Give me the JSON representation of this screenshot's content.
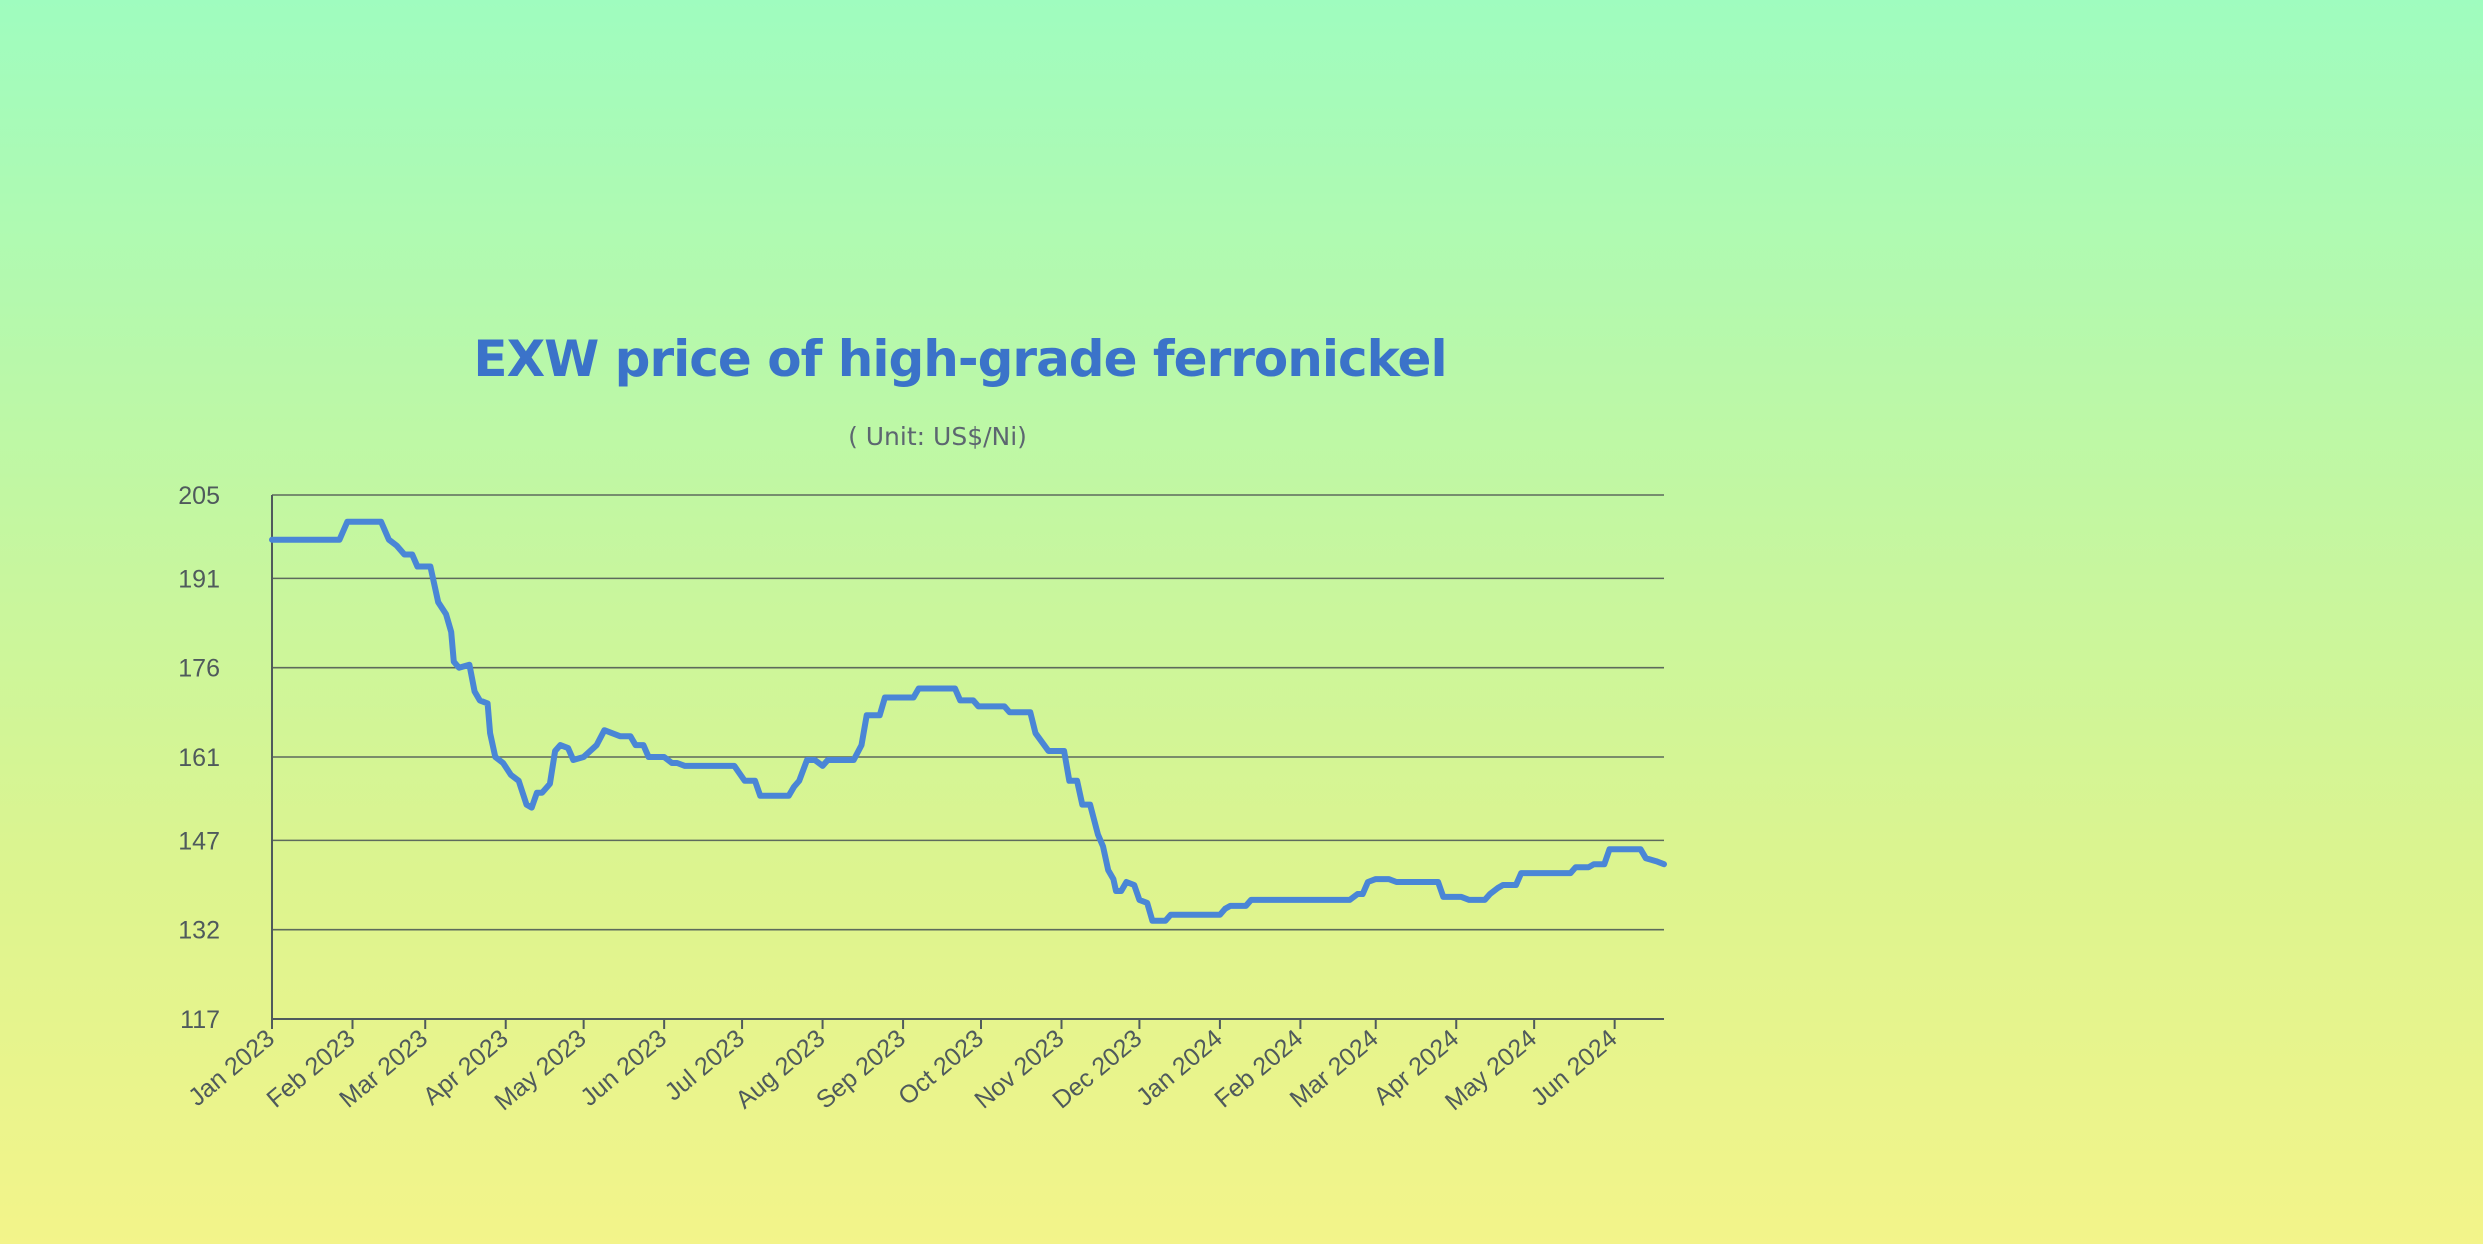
{
  "chart_data": {
    "type": "line",
    "title": "EXW price of high-grade ferronickel",
    "subtitle": "( Unit: US$/Ni)",
    "xlabel": "",
    "ylabel": "",
    "x_range": [
      "2023-01-01",
      "2024-06-20"
    ],
    "ylim": [
      117,
      205
    ],
    "yticks": [
      205,
      191,
      176,
      161,
      147,
      132,
      117
    ],
    "xticks": [
      {
        "date": "2023-01-01",
        "label": "Jan 2023"
      },
      {
        "date": "2023-02-01",
        "label": "Feb 2023"
      },
      {
        "date": "2023-03-01",
        "label": "Mar 2023"
      },
      {
        "date": "2023-04-01",
        "label": "Apr 2023"
      },
      {
        "date": "2023-05-01",
        "label": "May 2023"
      },
      {
        "date": "2023-06-01",
        "label": "Jun 2023"
      },
      {
        "date": "2023-07-01",
        "label": "Jul 2023"
      },
      {
        "date": "2023-08-01",
        "label": "Aug 2023"
      },
      {
        "date": "2023-09-01",
        "label": "Sep 2023"
      },
      {
        "date": "2023-10-01",
        "label": "Oct 2023"
      },
      {
        "date": "2023-11-01",
        "label": "Nov 2023"
      },
      {
        "date": "2023-12-01",
        "label": "Dec 2023"
      },
      {
        "date": "2024-01-01",
        "label": "Jan 2024"
      },
      {
        "date": "2024-02-01",
        "label": "Feb 2024"
      },
      {
        "date": "2024-03-01",
        "label": "Mar 2024"
      },
      {
        "date": "2024-04-01",
        "label": "Apr 2024"
      },
      {
        "date": "2024-05-01",
        "label": "May 2024"
      },
      {
        "date": "2024-06-01",
        "label": "Jun 2024"
      }
    ],
    "grid": "horizontal",
    "legend": "none",
    "series_color": "#4a86d6",
    "series": [
      {
        "name": "",
        "points": [
          [
            "2023-01-01",
            197.5
          ],
          [
            "2023-01-27",
            197.5
          ],
          [
            "2023-01-30",
            200.5
          ],
          [
            "2023-02-12",
            200.5
          ],
          [
            "2023-02-15",
            197.5
          ],
          [
            "2023-02-18",
            196.5
          ],
          [
            "2023-02-21",
            195
          ],
          [
            "2023-02-24",
            195
          ],
          [
            "2023-02-26",
            193
          ],
          [
            "2023-03-03",
            193
          ],
          [
            "2023-03-05",
            189
          ],
          [
            "2023-03-06",
            187
          ],
          [
            "2023-03-09",
            185
          ],
          [
            "2023-03-11",
            182
          ],
          [
            "2023-03-12",
            177
          ],
          [
            "2023-03-14",
            176
          ],
          [
            "2023-03-18",
            176.5
          ],
          [
            "2023-03-20",
            172
          ],
          [
            "2023-03-22",
            170.5
          ],
          [
            "2023-03-25",
            170
          ],
          [
            "2023-03-26",
            165
          ],
          [
            "2023-03-28",
            161
          ],
          [
            "2023-03-31",
            160
          ],
          [
            "2023-04-03",
            158
          ],
          [
            "2023-04-06",
            157
          ],
          [
            "2023-04-09",
            153
          ],
          [
            "2023-04-11",
            152.5
          ],
          [
            "2023-04-13",
            155
          ],
          [
            "2023-04-15",
            155
          ],
          [
            "2023-04-18",
            156.5
          ],
          [
            "2023-04-20",
            162
          ],
          [
            "2023-04-22",
            163
          ],
          [
            "2023-04-25",
            162.5
          ],
          [
            "2023-04-27",
            160.5
          ],
          [
            "2023-05-01",
            161
          ],
          [
            "2023-05-06",
            163
          ],
          [
            "2023-05-09",
            165.5
          ],
          [
            "2023-05-12",
            165
          ],
          [
            "2023-05-15",
            164.5
          ],
          [
            "2023-05-19",
            164.5
          ],
          [
            "2023-05-21",
            163
          ],
          [
            "2023-05-24",
            163
          ],
          [
            "2023-05-26",
            161
          ],
          [
            "2023-06-01",
            161
          ],
          [
            "2023-06-04",
            160
          ],
          [
            "2023-06-06",
            160
          ],
          [
            "2023-06-09",
            159.5
          ],
          [
            "2023-06-28",
            159.5
          ],
          [
            "2023-07-02",
            157
          ],
          [
            "2023-07-06",
            157
          ],
          [
            "2023-07-08",
            154.5
          ],
          [
            "2023-07-19",
            154.5
          ],
          [
            "2023-07-21",
            156
          ],
          [
            "2023-07-23",
            157
          ],
          [
            "2023-07-26",
            160.5
          ],
          [
            "2023-07-29",
            160.5
          ],
          [
            "2023-08-01",
            159.5
          ],
          [
            "2023-08-03",
            160.5
          ],
          [
            "2023-08-13",
            160.5
          ],
          [
            "2023-08-16",
            163
          ],
          [
            "2023-08-18",
            168
          ],
          [
            "2023-08-23",
            168
          ],
          [
            "2023-08-25",
            171
          ],
          [
            "2023-09-05",
            171
          ],
          [
            "2023-09-07",
            172.5
          ],
          [
            "2023-09-21",
            172.5
          ],
          [
            "2023-09-23",
            170.5
          ],
          [
            "2023-09-28",
            170.5
          ],
          [
            "2023-09-30",
            169.5
          ],
          [
            "2023-10-10",
            169.5
          ],
          [
            "2023-10-12",
            168.5
          ],
          [
            "2023-10-20",
            168.5
          ],
          [
            "2023-10-22",
            165
          ],
          [
            "2023-10-27",
            162
          ],
          [
            "2023-11-02",
            162
          ],
          [
            "2023-11-04",
            157
          ],
          [
            "2023-11-07",
            157
          ],
          [
            "2023-11-09",
            153
          ],
          [
            "2023-11-12",
            153
          ],
          [
            "2023-11-15",
            148
          ],
          [
            "2023-11-17",
            146
          ],
          [
            "2023-11-19",
            142
          ],
          [
            "2023-11-21",
            140.5
          ],
          [
            "2023-11-22",
            138.5
          ],
          [
            "2023-11-24",
            138.5
          ],
          [
            "2023-11-26",
            140
          ],
          [
            "2023-11-29",
            139.5
          ],
          [
            "2023-12-01",
            137
          ],
          [
            "2023-12-04",
            136.5
          ],
          [
            "2023-12-06",
            133.5
          ],
          [
            "2023-12-11",
            133.5
          ],
          [
            "2023-12-13",
            134.5
          ],
          [
            "2024-01-01",
            134.5
          ],
          [
            "2024-01-03",
            135.5
          ],
          [
            "2024-01-05",
            136
          ],
          [
            "2024-01-11",
            136
          ],
          [
            "2024-01-13",
            137
          ],
          [
            "2024-02-20",
            137
          ],
          [
            "2024-02-23",
            138
          ],
          [
            "2024-02-25",
            138
          ],
          [
            "2024-02-27",
            140
          ],
          [
            "2024-03-01",
            140.5
          ],
          [
            "2024-03-06",
            140.5
          ],
          [
            "2024-03-09",
            140
          ],
          [
            "2024-03-25",
            140
          ],
          [
            "2024-03-27",
            137.5
          ],
          [
            "2024-04-03",
            137.5
          ],
          [
            "2024-04-06",
            137
          ],
          [
            "2024-04-12",
            137
          ],
          [
            "2024-04-14",
            138
          ],
          [
            "2024-04-17",
            139
          ],
          [
            "2024-04-19",
            139.5
          ],
          [
            "2024-04-24",
            139.5
          ],
          [
            "2024-04-26",
            141.5
          ],
          [
            "2024-05-15",
            141.5
          ],
          [
            "2024-05-17",
            142.5
          ],
          [
            "2024-05-22",
            142.5
          ],
          [
            "2024-05-24",
            143
          ],
          [
            "2024-05-28",
            143
          ],
          [
            "2024-05-30",
            145.5
          ],
          [
            "2024-06-11",
            145.5
          ],
          [
            "2024-06-13",
            144
          ],
          [
            "2024-06-17",
            143.5
          ],
          [
            "2024-06-20",
            143
          ]
        ]
      }
    ]
  }
}
